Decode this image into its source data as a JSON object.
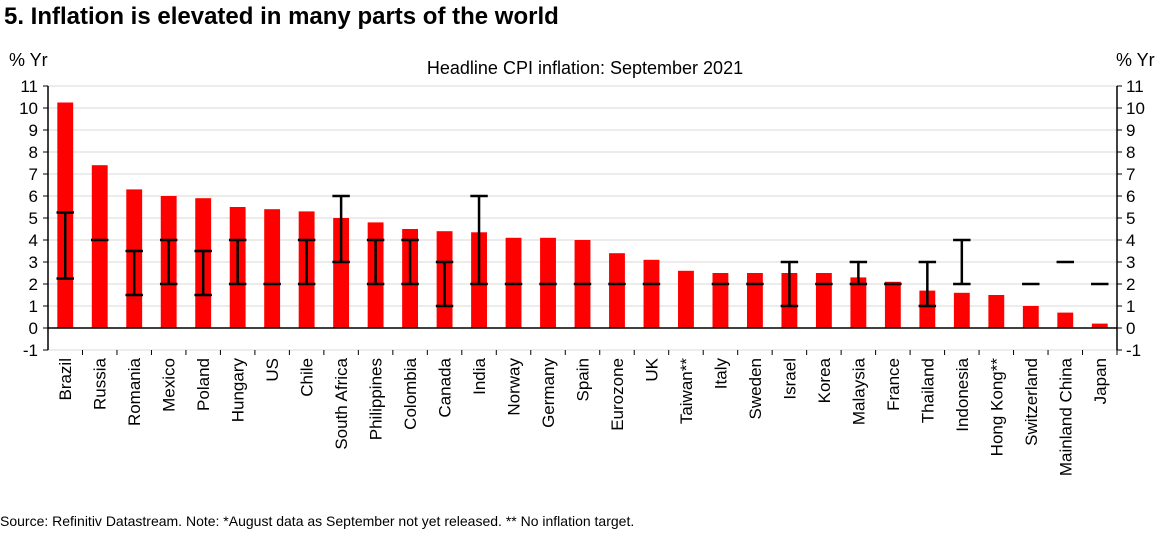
{
  "page": {
    "title": "5. Inflation is elevated in many parts of the world",
    "source": "Source: Refinitiv Datastream. Note: *August data as September not yet released. ** No inflation target."
  },
  "colors": {
    "bar": "#ff0000",
    "target": "#000000",
    "grid": "#d9d9d9",
    "axis": "#000000"
  },
  "chart_data": {
    "type": "bar",
    "title": "Headline CPI inflation: September 2021",
    "ylabel_left": "% Yr",
    "ylabel_right": "% Yr",
    "ylim": [
      -1,
      11
    ],
    "yticks": [
      -1,
      0,
      1,
      2,
      3,
      4,
      5,
      6,
      7,
      8,
      9,
      10,
      11
    ],
    "grid": true,
    "categories": [
      "Brazil",
      "Russia",
      "Romania",
      "Mexico",
      "Poland",
      "Hungary",
      "US",
      "Chile",
      "South Africa",
      "Philippines",
      "Colombia",
      "Canada",
      "India",
      "Norway",
      "Germany",
      "Spain",
      "Eurozone",
      "UK",
      "Taiwan**",
      "Italy",
      "Sweden",
      "Israel",
      "Korea",
      "Malaysia",
      "France",
      "Thailand",
      "Indonesia",
      "Hong Kong**",
      "Switzerland",
      "Mainland China",
      "Japan"
    ],
    "values": [
      10.25,
      7.4,
      6.3,
      6.0,
      5.9,
      5.5,
      5.4,
      5.3,
      5.0,
      4.8,
      4.5,
      4.4,
      4.35,
      4.1,
      4.1,
      4.0,
      3.4,
      3.1,
      2.6,
      2.5,
      2.5,
      2.5,
      2.5,
      2.3,
      2.1,
      1.7,
      1.6,
      1.5,
      1.0,
      0.7,
      0.2
    ],
    "targets": [
      {
        "low": 2.25,
        "high": 5.25
      },
      {
        "point": 4
      },
      {
        "low": 1.5,
        "high": 3.5
      },
      {
        "low": 2,
        "high": 4
      },
      {
        "low": 1.5,
        "high": 3.5
      },
      {
        "low": 2,
        "high": 4
      },
      {
        "point": 2
      },
      {
        "low": 2,
        "high": 4
      },
      {
        "low": 3,
        "high": 6
      },
      {
        "low": 2,
        "high": 4
      },
      {
        "low": 2,
        "high": 4
      },
      {
        "low": 1,
        "high": 3
      },
      {
        "low": 2,
        "high": 6
      },
      {
        "point": 2
      },
      {
        "point": 2
      },
      {
        "point": 2
      },
      {
        "point": 2
      },
      {
        "point": 2
      },
      null,
      {
        "point": 2
      },
      {
        "point": 2
      },
      {
        "low": 1,
        "high": 3
      },
      {
        "point": 2
      },
      {
        "low": 2,
        "high": 3
      },
      {
        "point": 2
      },
      {
        "low": 1,
        "high": 3
      },
      {
        "low": 2,
        "high": 4
      },
      null,
      {
        "point": 2
      },
      {
        "point": 3
      },
      {
        "point": 2
      }
    ]
  }
}
